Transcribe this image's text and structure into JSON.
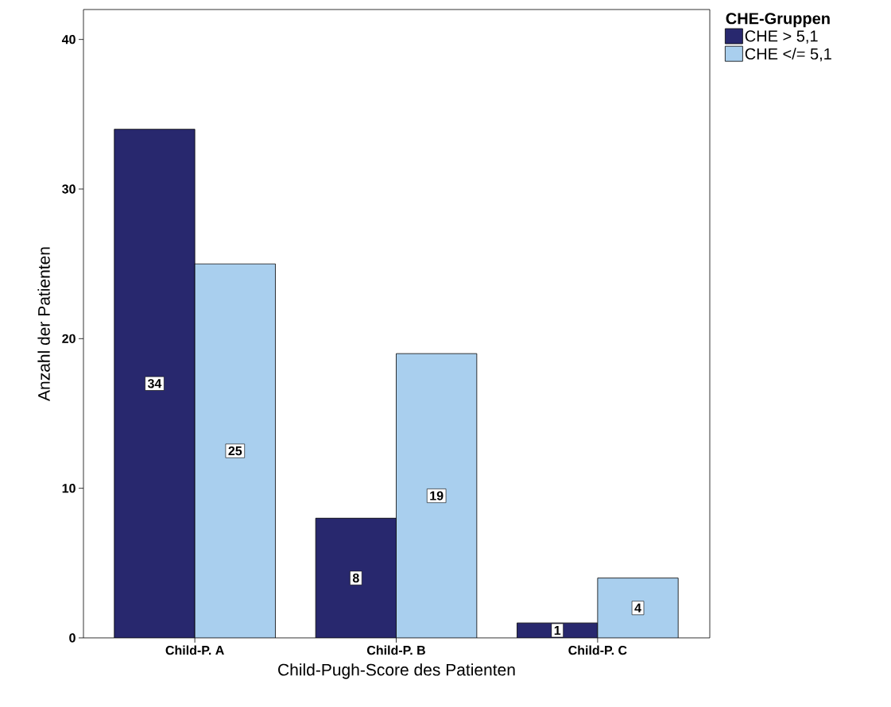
{
  "chart_data": {
    "type": "bar",
    "xlabel": "Child-Pugh-Score des Patienten",
    "ylabel": "Anzahl der Patienten",
    "legend_title": "CHE-Gruppen",
    "categories": [
      "Child-P. A",
      "Child-P. B",
      "Child-P. C"
    ],
    "series": [
      {
        "name": "CHE > 5,1",
        "color": "#28286e",
        "values": [
          34,
          8,
          1
        ]
      },
      {
        "name": "CHE </= 5,1",
        "color": "#a9cfee",
        "values": [
          25,
          19,
          4
        ]
      }
    ],
    "ylim": [
      0,
      42
    ],
    "yticks": [
      0,
      10,
      20,
      30,
      40
    ],
    "grid": false,
    "legend": "top right",
    "data_labels": true
  }
}
